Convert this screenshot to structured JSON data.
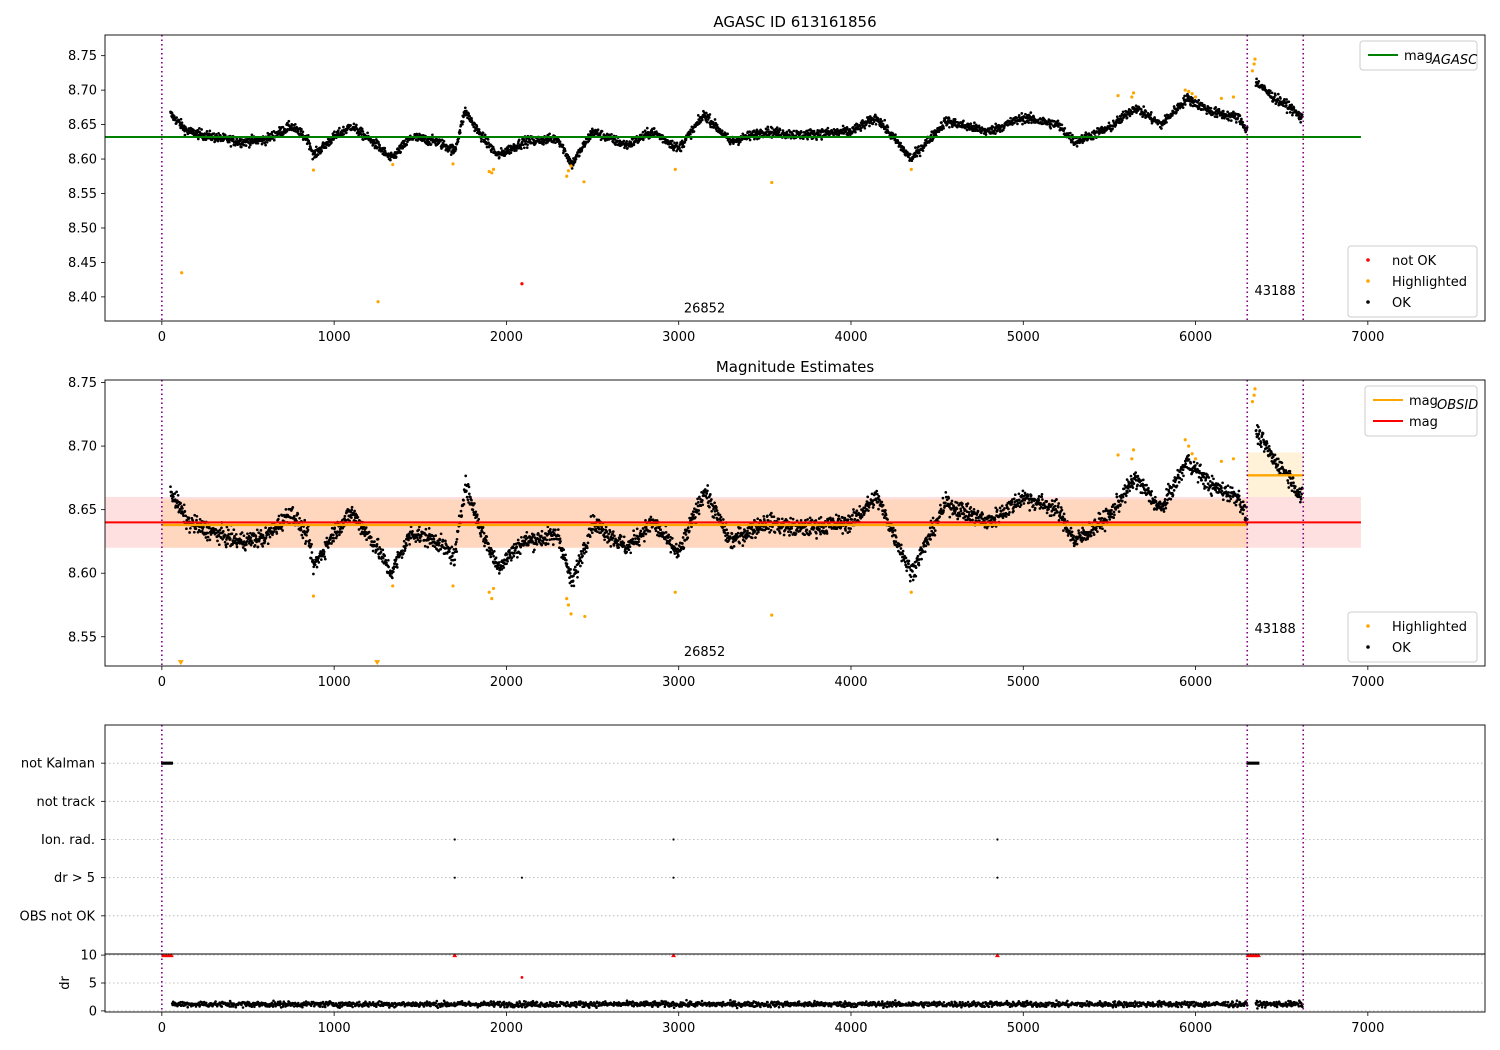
{
  "chart_data": [
    {
      "type": "scatter",
      "title": "AGASC ID 613161856",
      "xlim": [
        -330,
        7680
      ],
      "ylim": [
        8.365,
        8.78
      ],
      "xticks": [
        "0",
        "1000",
        "2000",
        "3000",
        "4000",
        "5000",
        "6000",
        "7000"
      ],
      "yticks": [
        "8.40",
        "8.45",
        "8.50",
        "8.55",
        "8.60",
        "8.65",
        "8.70",
        "8.75"
      ],
      "obs_boundaries": [
        0,
        6300,
        6625
      ],
      "obs_labels": [
        {
          "text": "26852",
          "x": 3150,
          "y": 8.377
        },
        {
          "text": "43188",
          "x": 6462,
          "y": 8.403
        }
      ],
      "mag_agasc": {
        "value": 8.632,
        "x_range": [
          -330,
          6960
        ],
        "color": "#008000"
      },
      "legend_top": [
        {
          "label": "mag",
          "sub": "AGASC",
          "color": "#008000",
          "kind": "line"
        }
      ],
      "legend_bottom": [
        {
          "label": "not OK",
          "color": "#ff0000",
          "kind": "dot"
        },
        {
          "label": "Highlighted",
          "color": "#ffa500",
          "kind": "dot"
        },
        {
          "label": "OK",
          "color": "#000000",
          "kind": "dot"
        }
      ],
      "not_ok_points": [
        [
          2090,
          8.419
        ]
      ],
      "highlighted_points": [
        [
          115,
          8.435
        ],
        [
          1255,
          8.393
        ],
        [
          880,
          8.584
        ],
        [
          1340,
          8.592
        ],
        [
          1690,
          8.593
        ],
        [
          1900,
          8.582
        ],
        [
          1915,
          8.58
        ],
        [
          1925,
          8.585
        ],
        [
          2350,
          8.575
        ],
        [
          2360,
          8.583
        ],
        [
          2375,
          8.59
        ],
        [
          2450,
          8.567
        ],
        [
          2980,
          8.585
        ],
        [
          3540,
          8.566
        ],
        [
          4350,
          8.585
        ],
        [
          5550,
          8.692
        ],
        [
          5630,
          8.69
        ],
        [
          5640,
          8.696
        ],
        [
          5940,
          8.7
        ],
        [
          5960,
          8.698
        ],
        [
          5980,
          8.695
        ],
        [
          6000,
          8.69
        ],
        [
          6150,
          8.688
        ],
        [
          6220,
          8.69
        ],
        [
          6330,
          8.728
        ],
        [
          6340,
          8.738
        ],
        [
          6345,
          8.745
        ]
      ],
      "ok_series": [
        {
          "x_range": [
            50,
            6300
          ],
          "profile": [
            [
              50,
              8.665
            ],
            [
              150,
              8.64
            ],
            [
              300,
              8.632
            ],
            [
              450,
              8.625
            ],
            [
              600,
              8.628
            ],
            [
              750,
              8.648
            ],
            [
              850,
              8.628
            ],
            [
              880,
              8.605
            ],
            [
              1000,
              8.632
            ],
            [
              1100,
              8.648
            ],
            [
              1250,
              8.62
            ],
            [
              1330,
              8.6
            ],
            [
              1450,
              8.632
            ],
            [
              1600,
              8.625
            ],
            [
              1700,
              8.612
            ],
            [
              1760,
              8.67
            ],
            [
              1850,
              8.635
            ],
            [
              1950,
              8.605
            ],
            [
              2100,
              8.625
            ],
            [
              2300,
              8.63
            ],
            [
              2380,
              8.592
            ],
            [
              2500,
              8.64
            ],
            [
              2700,
              8.62
            ],
            [
              2850,
              8.64
            ],
            [
              3000,
              8.615
            ],
            [
              3150,
              8.665
            ],
            [
              3300,
              8.625
            ],
            [
              3500,
              8.64
            ],
            [
              3700,
              8.635
            ],
            [
              4000,
              8.64
            ],
            [
              4150,
              8.66
            ],
            [
              4350,
              8.6
            ],
            [
              4550,
              8.655
            ],
            [
              4800,
              8.64
            ],
            [
              5000,
              8.66
            ],
            [
              5200,
              8.65
            ],
            [
              5300,
              8.625
            ],
            [
              5500,
              8.645
            ],
            [
              5650,
              8.675
            ],
            [
              5800,
              8.65
            ],
            [
              5950,
              8.688
            ],
            [
              6100,
              8.668
            ],
            [
              6250,
              8.66
            ],
            [
              6300,
              8.642
            ]
          ],
          "noise": 0.007
        },
        {
          "x_range": [
            6350,
            6620
          ],
          "profile": [
            [
              6350,
              8.712
            ],
            [
              6450,
              8.69
            ],
            [
              6550,
              8.675
            ],
            [
              6620,
              8.658
            ]
          ],
          "noise": 0.007
        }
      ]
    },
    {
      "type": "scatter",
      "title": "Magnitude Estimates",
      "xlim": [
        -330,
        7680
      ],
      "ylim": [
        8.527,
        8.752
      ],
      "xticks": [
        "0",
        "1000",
        "2000",
        "3000",
        "4000",
        "5000",
        "6000",
        "7000"
      ],
      "yticks": [
        "8.55",
        "8.60",
        "8.65",
        "8.70",
        "8.75"
      ],
      "obs_boundaries": [
        0,
        6300,
        6625
      ],
      "obs_labels": [
        {
          "text": "26852",
          "x": 3150,
          "y": 8.535
        },
        {
          "text": "43188",
          "x": 6462,
          "y": 8.553
        }
      ],
      "mag": {
        "value": 8.64,
        "band": [
          8.62,
          8.66
        ],
        "x_range": [
          -330,
          6960
        ],
        "color": "#ff0000"
      },
      "mag_obsid": [
        {
          "x_range": [
            0,
            6300
          ],
          "value": 8.638,
          "band": [
            8.62,
            8.658
          ],
          "color": "#ffa500"
        },
        {
          "x_range": [
            6300,
            6625
          ],
          "value": 8.677,
          "band": [
            8.66,
            8.695
          ],
          "color": "#ffa500"
        }
      ],
      "legend_top": [
        {
          "label": "mag",
          "sub": "OBSID",
          "color": "#ffa500",
          "kind": "line"
        },
        {
          "label": "mag",
          "sub": "",
          "color": "#ff0000",
          "kind": "line"
        }
      ],
      "legend_bottom": [
        {
          "label": "Highlighted",
          "color": "#ffa500",
          "kind": "dot"
        },
        {
          "label": "OK",
          "color": "#000000",
          "kind": "dot"
        }
      ],
      "highlighted_points": [
        [
          880,
          8.582
        ],
        [
          1340,
          8.59
        ],
        [
          1690,
          8.59
        ],
        [
          1900,
          8.585
        ],
        [
          1915,
          8.58
        ],
        [
          1925,
          8.588
        ],
        [
          2350,
          8.58
        ],
        [
          2360,
          8.575
        ],
        [
          2375,
          8.568
        ],
        [
          2455,
          8.566
        ],
        [
          2980,
          8.585
        ],
        [
          3540,
          8.567
        ],
        [
          4350,
          8.585
        ],
        [
          5550,
          8.693
        ],
        [
          5630,
          8.69
        ],
        [
          5640,
          8.697
        ],
        [
          5940,
          8.705
        ],
        [
          5960,
          8.7
        ],
        [
          5980,
          8.694
        ],
        [
          6000,
          8.69
        ],
        [
          6150,
          8.688
        ],
        [
          6220,
          8.69
        ],
        [
          6330,
          8.735
        ],
        [
          6340,
          8.74
        ],
        [
          6345,
          8.745
        ]
      ],
      "clipped_markers": [
        [
          110,
          8.53
        ],
        [
          1250,
          8.53
        ]
      ],
      "ok_series": [
        {
          "x_range": [
            50,
            6300
          ],
          "profile": [
            [
              50,
              8.665
            ],
            [
              150,
              8.64
            ],
            [
              300,
              8.632
            ],
            [
              450,
              8.625
            ],
            [
              600,
              8.628
            ],
            [
              750,
              8.648
            ],
            [
              850,
              8.628
            ],
            [
              880,
              8.605
            ],
            [
              1000,
              8.632
            ],
            [
              1100,
              8.648
            ],
            [
              1250,
              8.62
            ],
            [
              1330,
              8.6
            ],
            [
              1450,
              8.632
            ],
            [
              1600,
              8.625
            ],
            [
              1700,
              8.612
            ],
            [
              1760,
              8.67
            ],
            [
              1850,
              8.635
            ],
            [
              1950,
              8.605
            ],
            [
              2100,
              8.625
            ],
            [
              2300,
              8.63
            ],
            [
              2380,
              8.592
            ],
            [
              2500,
              8.64
            ],
            [
              2700,
              8.62
            ],
            [
              2850,
              8.64
            ],
            [
              3000,
              8.615
            ],
            [
              3150,
              8.665
            ],
            [
              3300,
              8.625
            ],
            [
              3500,
              8.64
            ],
            [
              3700,
              8.635
            ],
            [
              4000,
              8.64
            ],
            [
              4150,
              8.66
            ],
            [
              4350,
              8.6
            ],
            [
              4550,
              8.655
            ],
            [
              4800,
              8.64
            ],
            [
              5000,
              8.66
            ],
            [
              5200,
              8.65
            ],
            [
              5300,
              8.625
            ],
            [
              5500,
              8.645
            ],
            [
              5650,
              8.675
            ],
            [
              5800,
              8.65
            ],
            [
              5950,
              8.688
            ],
            [
              6100,
              8.668
            ],
            [
              6250,
              8.66
            ],
            [
              6300,
              8.642
            ]
          ],
          "noise": 0.007
        },
        {
          "x_range": [
            6350,
            6620
          ],
          "profile": [
            [
              6350,
              8.712
            ],
            [
              6450,
              8.69
            ],
            [
              6550,
              8.675
            ],
            [
              6620,
              8.658
            ]
          ],
          "noise": 0.007
        }
      ]
    },
    {
      "type": "scatter",
      "title": "",
      "xlim": [
        -330,
        7680
      ],
      "ylim": [
        5.5,
        0.5
      ],
      "yticks_categorical": [
        "not Kalman",
        "not track",
        "Ion. rad.",
        "dr > 5",
        "OBS not OK"
      ],
      "obs_boundaries": [
        0,
        6300,
        6625
      ],
      "flags": [
        {
          "row": "not Kalman",
          "x_ranges": [
            [
              0,
              60
            ],
            [
              6300,
              6370
            ]
          ]
        },
        {
          "row": "not track",
          "x_ranges": []
        },
        {
          "row": "Ion. rad.",
          "points": [
            1700,
            2970,
            4850
          ]
        },
        {
          "row": "dr > 5",
          "points": [
            1700,
            2090,
            2970,
            4850
          ]
        },
        {
          "row": "OBS not OK",
          "x_ranges": []
        }
      ]
    },
    {
      "type": "scatter",
      "title": "",
      "ylabel": "dr",
      "xlim": [
        -330,
        7680
      ],
      "ylim": [
        -0.2,
        10.2
      ],
      "xticks": [
        "0",
        "1000",
        "2000",
        "3000",
        "4000",
        "5000",
        "6000",
        "7000"
      ],
      "yticks": [
        "0",
        "5",
        "10"
      ],
      "obs_boundaries": [
        0,
        6300,
        6625
      ],
      "clipped_high_points": [
        [
          10,
          10
        ],
        [
          25,
          10
        ],
        [
          40,
          10
        ],
        [
          55,
          10
        ],
        [
          1700,
          10
        ],
        [
          2970,
          10
        ],
        [
          4850,
          10
        ],
        [
          6305,
          10
        ],
        [
          6320,
          10
        ],
        [
          6335,
          10
        ],
        [
          6350,
          10
        ],
        [
          6365,
          10
        ]
      ],
      "outlier_points": [
        [
          2090,
          6.0
        ]
      ],
      "ok_series": [
        {
          "x_range": [
            60,
            6300
          ],
          "level": 1.2,
          "noise": 0.5
        },
        {
          "x_range": [
            6350,
            6620
          ],
          "level": 1.2,
          "noise": 0.5
        }
      ]
    }
  ]
}
